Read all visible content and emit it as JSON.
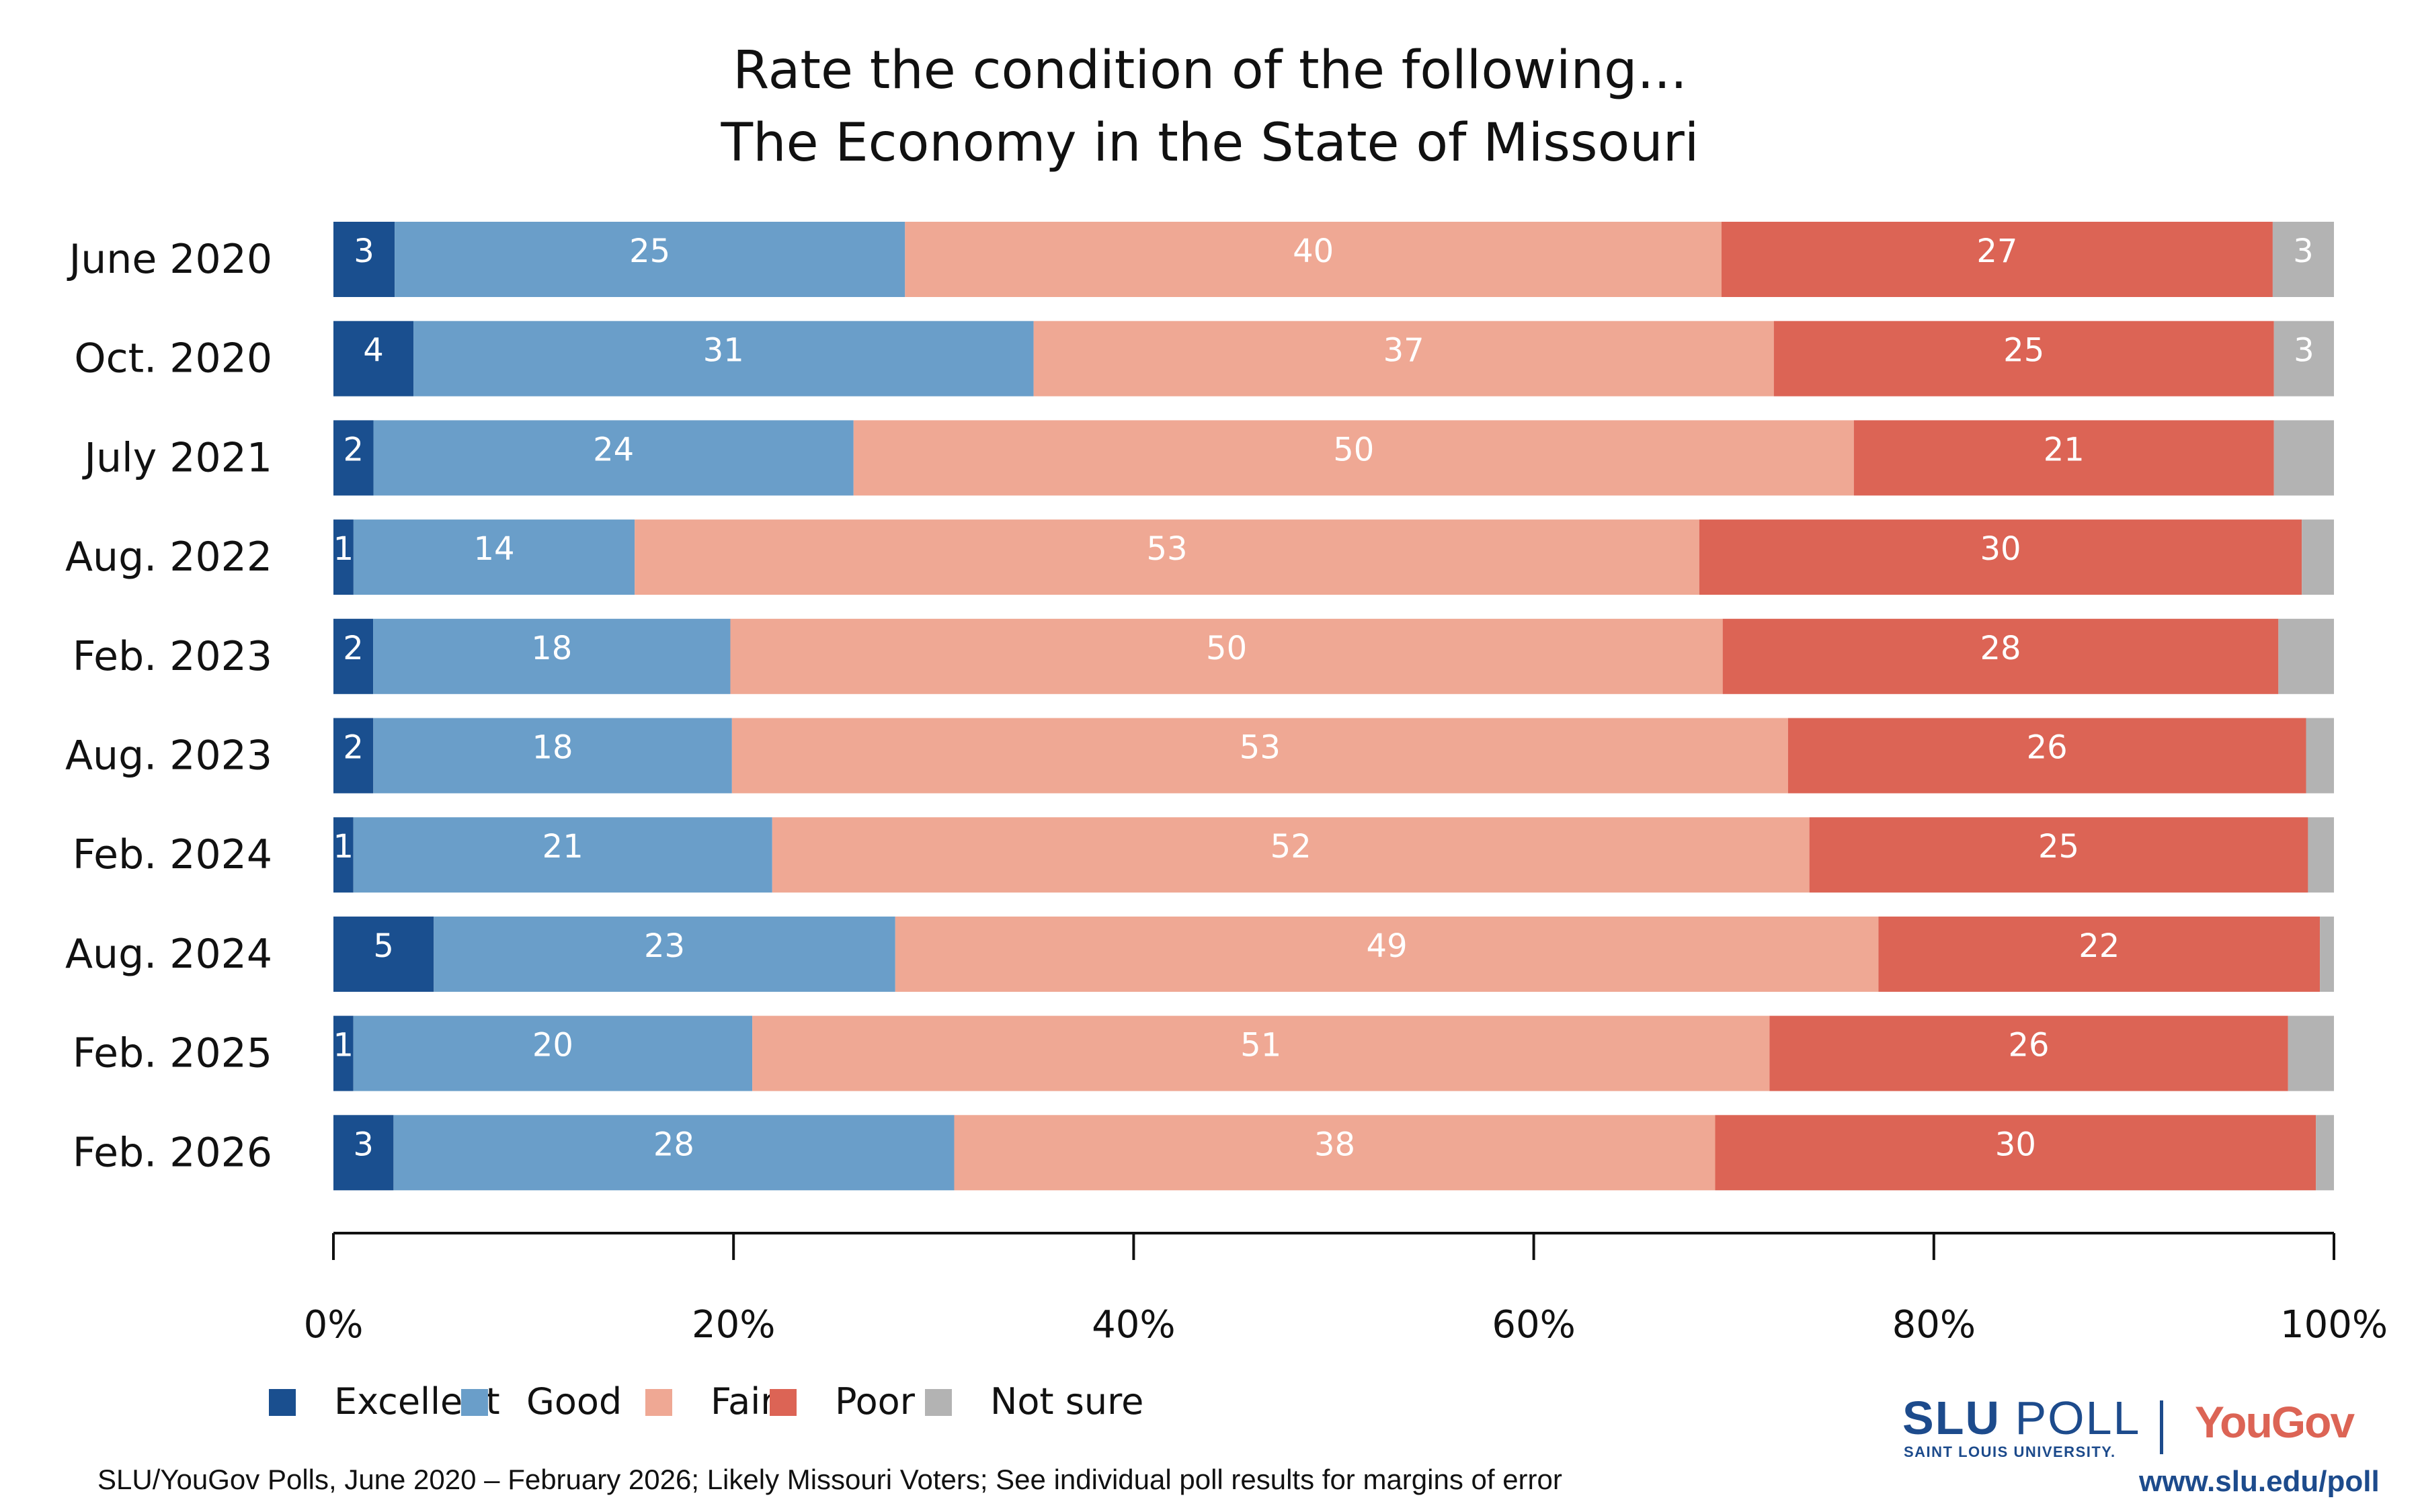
{
  "chart_data": {
    "type": "bar",
    "orientation": "horizontal",
    "stacked": true,
    "title": "Rate the condition of the following...",
    "subtitle": "The Economy in the State of Missouri",
    "categories": [
      "June 2020",
      "Oct. 2020",
      "July 2021",
      "Aug. 2022",
      "Feb. 2023",
      "Aug. 2023",
      "Feb. 2024",
      "Aug. 2024",
      "Feb. 2025",
      "Feb. 2026"
    ],
    "series": [
      {
        "name": "Excellent",
        "color": "#1a4f8f",
        "values": [
          3,
          4,
          2,
          1,
          2,
          2,
          1,
          5,
          1,
          3
        ],
        "labels": [
          "3",
          "4",
          "2",
          "1",
          "2",
          "2",
          "1",
          "5",
          "1",
          "3"
        ]
      },
      {
        "name": "Good",
        "color": "#6a9ec9",
        "values": [
          25,
          31,
          24,
          14,
          18,
          18,
          21,
          23,
          20,
          28
        ],
        "labels": [
          "25",
          "31",
          "24",
          "14",
          "18",
          "18",
          "21",
          "23",
          "20",
          "28"
        ]
      },
      {
        "name": "Fair",
        "color": "#efa894",
        "values": [
          40,
          37,
          50,
          53,
          50,
          53,
          52,
          49,
          51,
          38
        ],
        "labels": [
          "40",
          "37",
          "50",
          "53",
          "50",
          "53",
          "52",
          "49",
          "51",
          "38"
        ]
      },
      {
        "name": "Poor",
        "color": "#dc6455",
        "values": [
          27,
          25,
          21,
          30,
          28,
          26,
          25,
          22,
          26,
          30
        ],
        "labels": [
          "27",
          "25",
          "21",
          "30",
          "28",
          "26",
          "25",
          "22",
          "26",
          "30"
        ]
      },
      {
        "name": "Not sure",
        "color": "#b3b3b3",
        "values": [
          3,
          3,
          3,
          1.6,
          2.8,
          1.4,
          1.3,
          0.7,
          2.3,
          0.9
        ],
        "labels": [
          "3",
          "3",
          "",
          "",
          "",
          "",
          "",
          "",
          "",
          ""
        ]
      }
    ],
    "xlim": [
      0,
      100
    ],
    "xticks": [
      "0%",
      "20%",
      "40%",
      "60%",
      "80%",
      "100%"
    ],
    "legend_position": "bottom-left",
    "grid": false
  },
  "footer": "SLU/YouGov Polls, June 2020 – February 2026; Likely Missouri Voters; See individual poll results for margins of error",
  "logo": {
    "slu_bold": "SLU",
    "slu_poll": "POLL",
    "university": "SAINT LOUIS UNIVERSITY.",
    "yougov": "YouGov",
    "url": "www.slu.edu/poll"
  }
}
